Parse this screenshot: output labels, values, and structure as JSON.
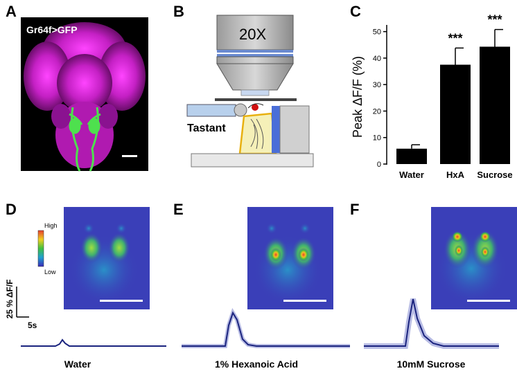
{
  "panels": {
    "A": {
      "label": "A",
      "genotype": "Gr64f>GFP"
    },
    "B": {
      "label": "B",
      "objective": "20X",
      "tastant": "Tastant"
    },
    "C": {
      "label": "C"
    },
    "D": {
      "label": "D",
      "condition": "Water"
    },
    "E": {
      "label": "E",
      "condition": "1% Hexanoic Acid"
    },
    "F": {
      "label": "F",
      "condition": "10mM Sucrose"
    }
  },
  "colorbar": {
    "high": "High",
    "low": "Low"
  },
  "scalebar": {
    "y_label": "25 % ΔF/F",
    "x_label": "5s"
  },
  "chart_data": {
    "type": "bar",
    "categories": [
      "Water",
      "HxA",
      "Sucrose"
    ],
    "values": [
      5.8,
      37.5,
      44.3
    ],
    "errors": [
      1.5,
      6.3,
      6.5
    ],
    "significance": [
      "",
      "***",
      "***"
    ],
    "ylabel": "Peak ΔF/F (%)",
    "ylim": [
      0,
      52
    ],
    "yticks": [
      0,
      10,
      20,
      30,
      40,
      50
    ],
    "bar_color": "#000000"
  },
  "colors": {
    "trace": "#1a237e",
    "trace_band": "#9aa0d8",
    "gfp": "#4ee04e",
    "background_magenta": "#c21fc2",
    "heatmap_bg": "#3a3fb8"
  }
}
